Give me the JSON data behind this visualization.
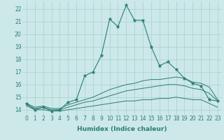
{
  "xlabel": "Humidex (Indice chaleur)",
  "x": [
    0,
    1,
    2,
    3,
    4,
    5,
    6,
    7,
    8,
    9,
    10,
    11,
    12,
    13,
    14,
    15,
    16,
    17,
    18,
    19,
    20,
    21,
    22,
    23
  ],
  "line1_y": [
    14.5,
    14.0,
    14.2,
    13.9,
    14.0,
    14.6,
    14.8,
    16.7,
    17.0,
    18.3,
    21.2,
    20.6,
    22.3,
    21.1,
    21.1,
    19.0,
    17.5,
    17.8,
    17.2,
    16.5,
    16.1,
    15.9,
    14.8,
    14.7
  ],
  "line2_y": [
    14.5,
    14.2,
    14.3,
    14.1,
    14.1,
    14.4,
    14.6,
    14.8,
    15.0,
    15.3,
    15.6,
    15.8,
    16.0,
    16.1,
    16.3,
    16.4,
    16.4,
    16.5,
    16.6,
    16.5,
    16.2,
    16.1,
    15.8,
    14.8
  ],
  "line3_y": [
    14.4,
    14.1,
    14.2,
    14.0,
    14.0,
    14.2,
    14.4,
    14.6,
    14.7,
    14.9,
    15.1,
    15.3,
    15.5,
    15.6,
    15.7,
    15.8,
    15.9,
    16.0,
    16.0,
    15.9,
    15.7,
    15.6,
    15.3,
    14.7
  ],
  "line4_y": [
    14.3,
    14.0,
    14.0,
    13.9,
    13.9,
    14.0,
    14.1,
    14.2,
    14.3,
    14.4,
    14.5,
    14.6,
    14.7,
    14.7,
    14.8,
    14.8,
    14.9,
    14.9,
    15.0,
    14.9,
    14.8,
    14.8,
    14.5,
    14.2
  ],
  "color": "#2d7d74",
  "bg_color": "#cce8e8",
  "grid_color": "#aacfcf",
  "ylim": [
    13.6,
    22.6
  ],
  "yticks": [
    14,
    15,
    16,
    17,
    18,
    19,
    20,
    21,
    22
  ],
  "xlim": [
    -0.5,
    23.5
  ],
  "marker": "*",
  "markersize": 3.5,
  "tick_fontsize": 5.5,
  "xlabel_fontsize": 6.5
}
